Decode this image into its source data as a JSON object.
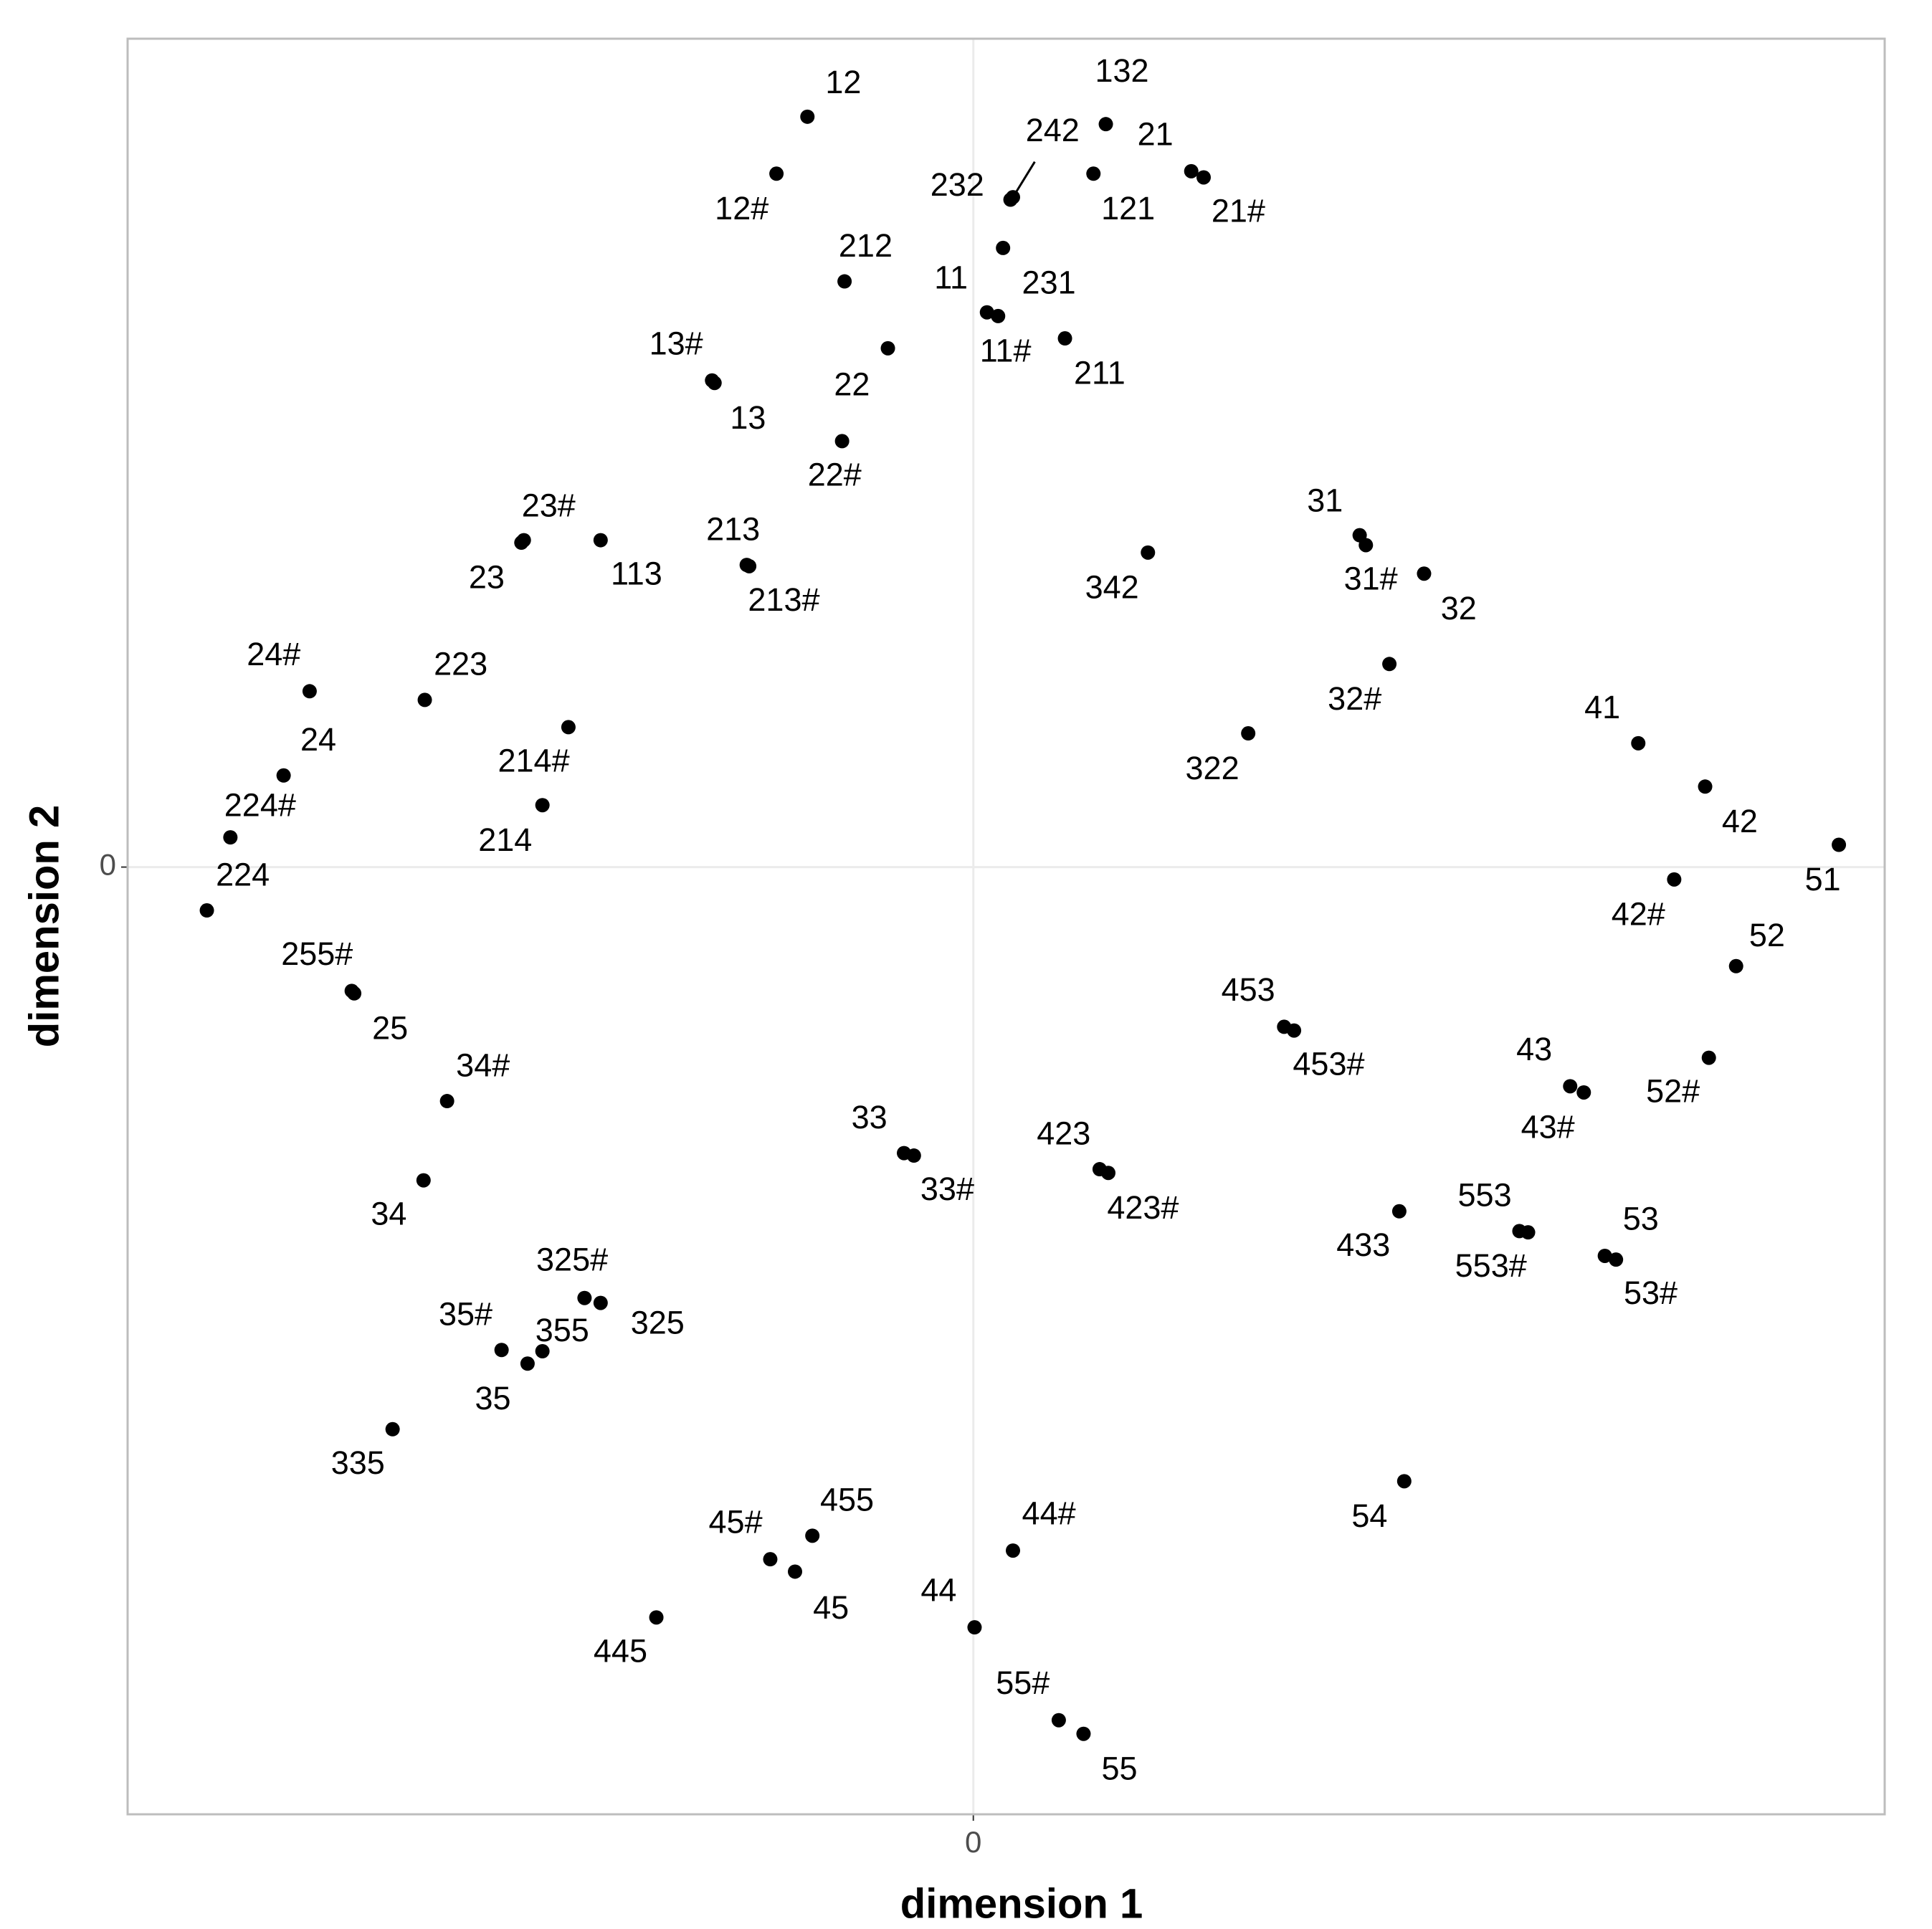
{
  "chart_data": {
    "type": "scatter",
    "x_label": "dimension 1",
    "y_label": "dimension 2",
    "xlim": [
      -6.83,
      7.36
    ],
    "ylim": [
      -7.65,
      6.69
    ],
    "xticks": [
      0
    ],
    "yticks": [
      0
    ],
    "grid": true,
    "color": "#000000",
    "labels": [
      "12",
      "12#",
      "132",
      "21",
      "21#",
      "121",
      "232",
      "242",
      "212",
      "11",
      "11#",
      "231",
      "211",
      "13#",
      "13",
      "22",
      "22#",
      "23",
      "23#",
      "113",
      "213",
      "213#",
      "342",
      "31",
      "31#",
      "32",
      "32#",
      "322",
      "41",
      "42",
      "51",
      "42#",
      "52",
      "52#",
      "43",
      "43#",
      "453",
      "453#",
      "423",
      "423#",
      "33",
      "33#",
      "433",
      "553",
      "553#",
      "53",
      "53#",
      "54",
      "24#",
      "223",
      "214#",
      "24",
      "214",
      "224#",
      "224",
      "255#",
      "25",
      "34#",
      "34",
      "325#",
      "325",
      "35#",
      "355",
      "35",
      "335",
      "455",
      "45#",
      "45",
      "445",
      "44#",
      "44",
      "55#",
      "55"
    ],
    "x": [
      -1.34,
      -1.59,
      1.07,
      1.76,
      1.86,
      0.97,
      0.3,
      0.32,
      -1.04,
      0.11,
      0.2,
      0.24,
      0.74,
      -2.11,
      -2.09,
      -0.69,
      -1.06,
      -3.65,
      -3.63,
      -3.01,
      -1.83,
      -1.81,
      1.41,
      3.12,
      3.17,
      3.64,
      3.36,
      2.22,
      5.37,
      5.91,
      6.99,
      5.66,
      6.16,
      5.94,
      4.82,
      4.93,
      2.51,
      2.59,
      1.02,
      1.09,
      -0.56,
      -0.48,
      3.44,
      4.41,
      4.48,
      5.1,
      5.19,
      3.48,
      -5.36,
      -4.43,
      -3.27,
      -5.57,
      -3.48,
      -6.0,
      -6.19,
      -5.02,
      -5.0,
      -4.25,
      -4.44,
      -3.14,
      -3.01,
      -3.81,
      -3.48,
      -3.6,
      -4.69,
      -1.3,
      -1.64,
      -1.44,
      -2.56,
      0.32,
      0.01,
      0.69,
      0.89
    ],
    "y": [
      6.06,
      5.6,
      6.0,
      5.62,
      5.57,
      5.6,
      5.39,
      5.41,
      4.73,
      4.48,
      4.45,
      5.0,
      4.27,
      3.93,
      3.91,
      4.19,
      3.44,
      2.62,
      2.64,
      2.64,
      2.44,
      2.43,
      2.54,
      2.68,
      2.6,
      2.37,
      1.64,
      1.08,
      1.0,
      0.65,
      0.18,
      -0.1,
      -0.8,
      -1.54,
      -1.77,
      -1.82,
      -1.29,
      -1.32,
      -2.44,
      -2.47,
      -2.31,
      -2.33,
      -2.78,
      -2.94,
      -2.95,
      -3.14,
      -3.17,
      -4.96,
      1.42,
      1.35,
      1.13,
      0.74,
      0.5,
      0.24,
      -0.35,
      -1.0,
      -1.02,
      -1.89,
      -2.53,
      -3.48,
      -3.52,
      -3.9,
      -3.91,
      -4.01,
      -4.54,
      -5.4,
      -5.59,
      -5.69,
      -6.06,
      -5.52,
      -6.14,
      -6.89,
      -7.0
    ]
  }
}
